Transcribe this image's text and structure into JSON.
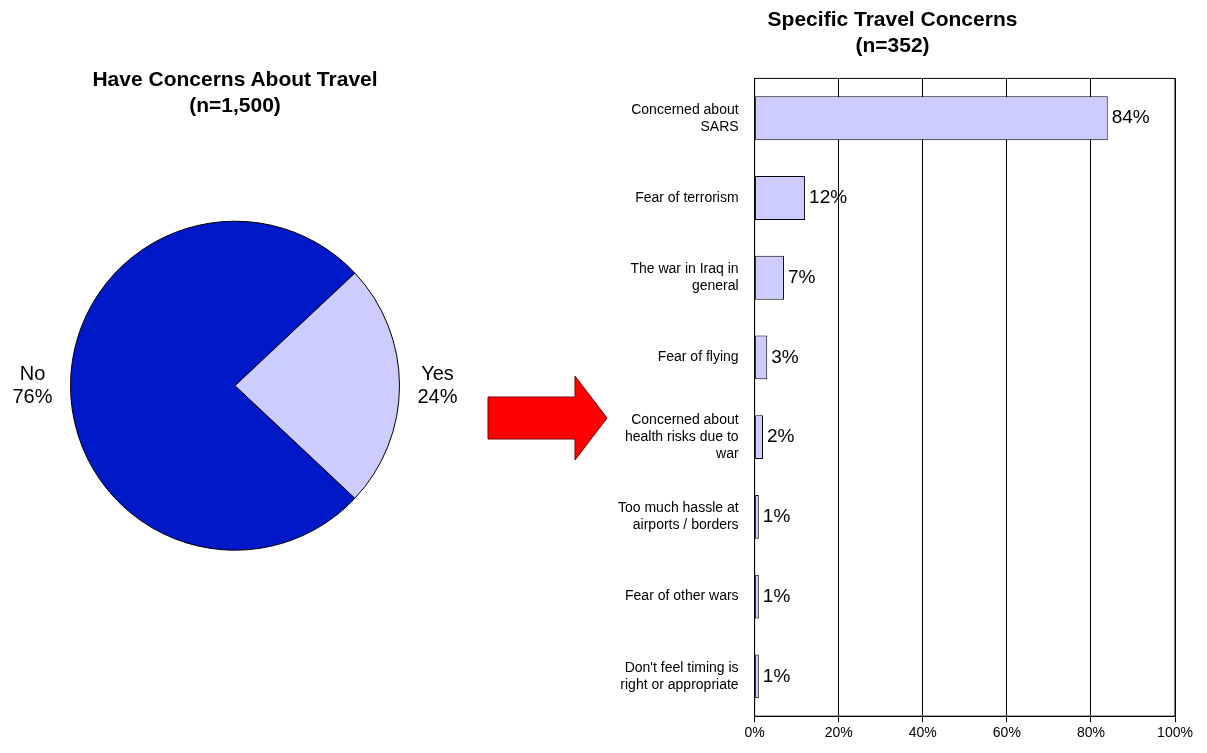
{
  "chart_data": [
    {
      "type": "pie",
      "title": "Have Concerns About Travel\n(n=1,500)",
      "categories": [
        "No",
        "Yes"
      ],
      "values": [
        76,
        24
      ],
      "colors": [
        "#0019c8",
        "#ccccff"
      ],
      "value_labels": [
        "76%",
        "24%"
      ],
      "legend": false
    },
    {
      "type": "bar",
      "orientation": "horizontal",
      "title": "Specific Travel Concerns\n(n=352)",
      "categories": [
        "Concerned about SARS",
        "Fear of terrorism",
        "The war in Iraq in general",
        "Fear of flying",
        "Concerned about health risks due to war",
        "Too much hassle at airports / borders",
        "Fear of other wars",
        "Don't feel timing is right or appropriate"
      ],
      "values": [
        84,
        12,
        7,
        3,
        2,
        1,
        1,
        1
      ],
      "color": "#ccccff",
      "value_labels": [
        "84%",
        "12%",
        "7%",
        "3%",
        "2%",
        "1%",
        "1%",
        "1%"
      ],
      "xlim": [
        0,
        100
      ],
      "xticks": [
        {
          "value": 0,
          "label": "0%"
        },
        {
          "value": 20,
          "label": "20%"
        },
        {
          "value": 40,
          "label": "40%"
        },
        {
          "value": 60,
          "label": "60%"
        },
        {
          "value": 80,
          "label": "80%"
        },
        {
          "value": 100,
          "label": "100%"
        }
      ],
      "grid": "x",
      "legend": false
    }
  ]
}
